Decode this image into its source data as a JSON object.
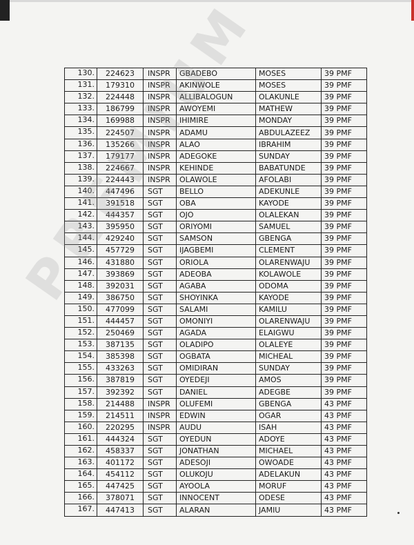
{
  "watermark": "PREMIUM TIMES",
  "rows": [
    [
      "130.",
      "224623",
      "INSPR",
      "GBADEBO",
      "MOSES",
      "39 PMF"
    ],
    [
      "131.",
      "179310",
      "INSPR",
      "AKINWOLE",
      "MOSES",
      "39 PMF"
    ],
    [
      "132.",
      "224448",
      "INSPR",
      "ALLIBALOGUN",
      "OLAKUNLE",
      "39 PMF"
    ],
    [
      "133.",
      "186799",
      "INSPR",
      "AWOYEMI",
      "MATHEW",
      "39 PMF"
    ],
    [
      "134.",
      "169988",
      "INSPR",
      "IHIMIRE",
      "MONDAY",
      "39 PMF"
    ],
    [
      "135.",
      "224507",
      "INSPR",
      "ADAMU",
      "ABDULAZEEZ",
      "39 PMF"
    ],
    [
      "136.",
      "135266",
      "INSPR",
      "ALAO",
      "IBRAHIM",
      "39 PMF"
    ],
    [
      "137.",
      "179177",
      "INSPR",
      "ADEGOKE",
      "SUNDAY",
      "39 PMF"
    ],
    [
      "138.",
      "224667",
      "INSPR",
      "KEHINDE",
      "BABATUNDE",
      "39 PMF"
    ],
    [
      "139.",
      "224443",
      "INSPR",
      "OLAWOLE",
      "AFOLABI",
      "39 PMF"
    ],
    [
      "140.",
      "447496",
      "SGT",
      "BELLO",
      "ADEKUNLE",
      "39 PMF"
    ],
    [
      "141.",
      "391518",
      "SGT",
      "OBA",
      "KAYODE",
      "39 PMF"
    ],
    [
      "142.",
      "444357",
      "SGT",
      "OJO",
      "OLALEKAN",
      "39 PMF"
    ],
    [
      "143.",
      "395950",
      "SGT",
      "ORIYOMI",
      "SAMUEL",
      "39 PMF"
    ],
    [
      "144.",
      "429240",
      "SGT",
      "SAMSON",
      "GBENGA",
      "39 PMF"
    ],
    [
      "145.",
      "457729",
      "SGT",
      "IJAGBEMI",
      "CLEMENT",
      "39 PMF"
    ],
    [
      "146.",
      "431880",
      "SGT",
      "ORIOLA",
      "OLARENWAJU",
      "39 PMF"
    ],
    [
      "147.",
      "393869",
      "SGT",
      "ADEOBA",
      "KOLAWOLE",
      "39 PMF"
    ],
    [
      "148.",
      "392031",
      "SGT",
      "AGABA",
      "ODOMA",
      "39 PMF"
    ],
    [
      "149.",
      "386750",
      "SGT",
      "SHOYINKA",
      "KAYODE",
      "39 PMF"
    ],
    [
      "150.",
      "477099",
      "SGT",
      "SALAMI",
      "KAMILU",
      "39 PMF"
    ],
    [
      "151.",
      "444457",
      "SGT",
      "OMONIYI",
      "OLARENWAJU",
      "39 PMF"
    ],
    [
      "152.",
      "250469",
      "SGT",
      "AGADA",
      "ELAIGWU",
      "39 PMF"
    ],
    [
      "153.",
      "387135",
      "SGT",
      "OLADIPO",
      "OLALEYE",
      "39 PMF"
    ],
    [
      "154.",
      "385398",
      "SGT",
      "OGBATA",
      "MICHEAL",
      "39 PMF"
    ],
    [
      "155.",
      "433263",
      "SGT",
      "OMIDIRAN",
      "SUNDAY",
      "39 PMF"
    ],
    [
      "156.",
      "387819",
      "SGT",
      "OYEDEJI",
      "AMOS",
      "39 PMF"
    ],
    [
      "157.",
      "392392",
      "SGT",
      "DANIEL",
      "ADEGBE",
      "39 PMF"
    ],
    [
      "158.",
      "214488",
      "INSPR",
      "OLUFEMI",
      "GBENGA",
      "43 PMF"
    ],
    [
      "159.",
      "214511",
      "INSPR",
      "EDWIN",
      "OGAR",
      "43 PMF"
    ],
    [
      "160.",
      "220295",
      "INSPR",
      "AUDU",
      "ISAH",
      "43 PMF"
    ],
    [
      "161.",
      "444324",
      "SGT",
      "OYEDUN",
      "ADOYE",
      "43 PMF"
    ],
    [
      "162.",
      "458337",
      "SGT",
      "JONATHAN",
      "MICHAEL",
      "43 PMF"
    ],
    [
      "163.",
      "401172",
      "SGT",
      "ADESOJI",
      "OWOADE",
      "43 PMF"
    ],
    [
      "164.",
      "454112",
      "SGT",
      "OLUKOJU",
      "ADELAKUN",
      "43 PMF"
    ],
    [
      "165.",
      "447425",
      "SGT",
      "AYOOLA",
      "MORUF",
      "43 PMF"
    ],
    [
      "166.",
      "378071",
      "SGT",
      "INNOCENT",
      "ODESE",
      "43 PMF"
    ],
    [
      "167.",
      "447413",
      "SGT",
      "ALARAN",
      "JAMIU",
      "43 PMF"
    ]
  ]
}
